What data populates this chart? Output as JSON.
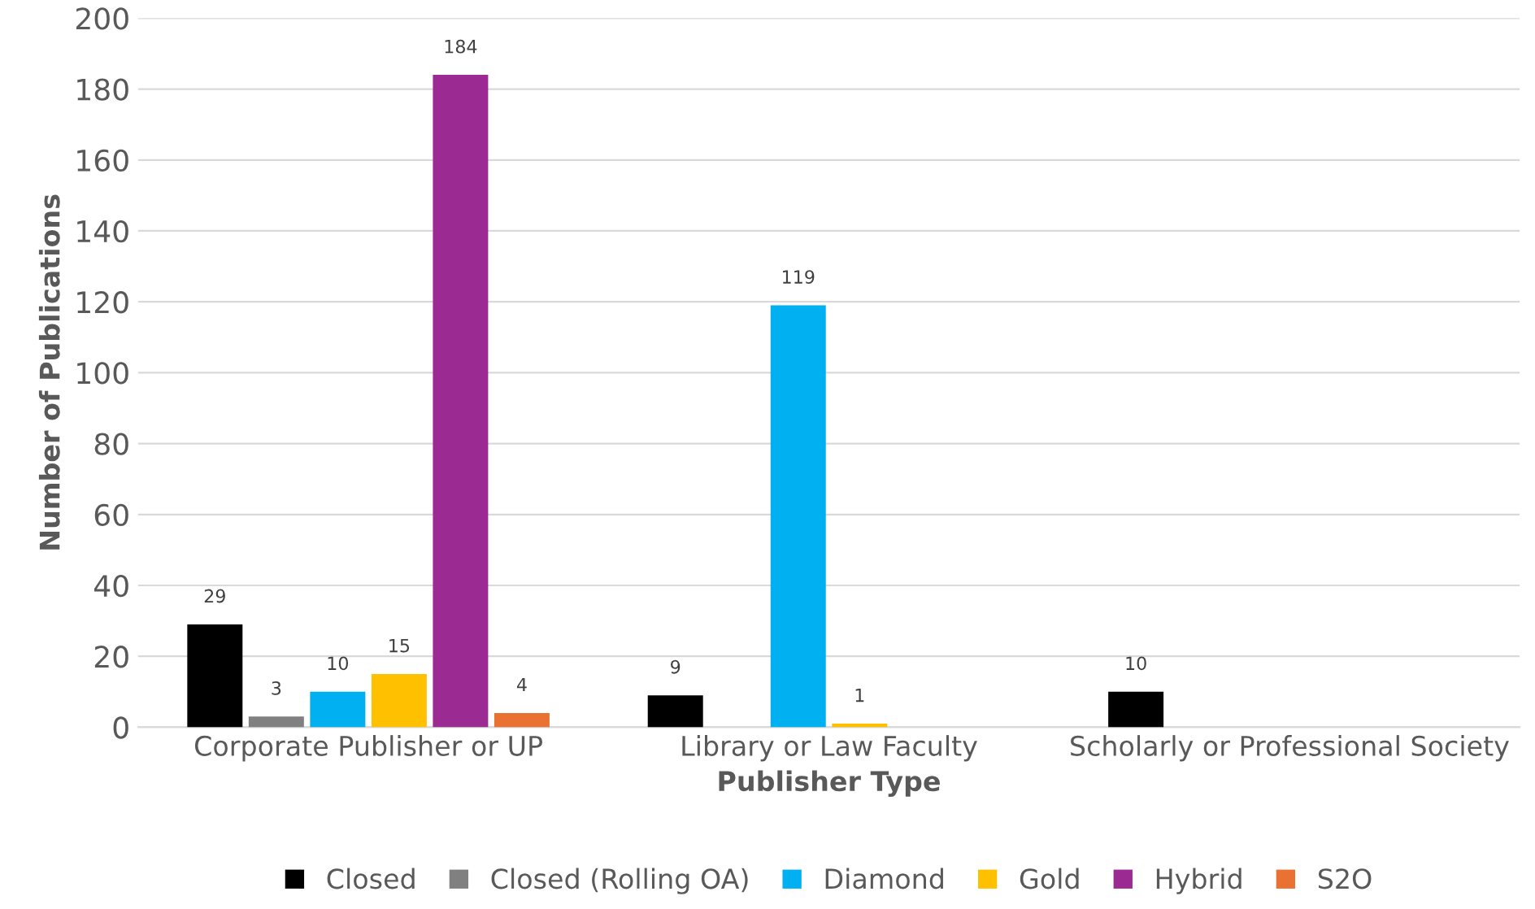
{
  "chart_data": {
    "type": "bar",
    "xlabel": "Publisher Type",
    "ylabel": "Number of Publications",
    "categories": [
      "Corporate Publisher or UP",
      "Library or Law Faculty",
      "Scholarly or Professional Society"
    ],
    "series": [
      {
        "name": "Closed",
        "color": "#000000",
        "values": [
          29,
          9,
          10
        ]
      },
      {
        "name": "Closed (Rolling OA)",
        "color": "#808080",
        "values": [
          3,
          null,
          null
        ]
      },
      {
        "name": "Diamond",
        "color": "#00b0f0",
        "values": [
          10,
          119,
          null
        ]
      },
      {
        "name": "Gold",
        "color": "#ffc000",
        "values": [
          15,
          1,
          null
        ]
      },
      {
        "name": "Hybrid",
        "color": "#9b2a93",
        "values": [
          184,
          null,
          null
        ]
      },
      {
        "name": "S2O",
        "color": "#e97132",
        "values": [
          4,
          null,
          null
        ]
      }
    ],
    "ylim": [
      0,
      200
    ],
    "yticks": [
      0,
      20,
      40,
      60,
      80,
      100,
      120,
      140,
      160,
      180,
      200
    ],
    "grid": "y",
    "legend": "bottom",
    "data_labels": true
  }
}
